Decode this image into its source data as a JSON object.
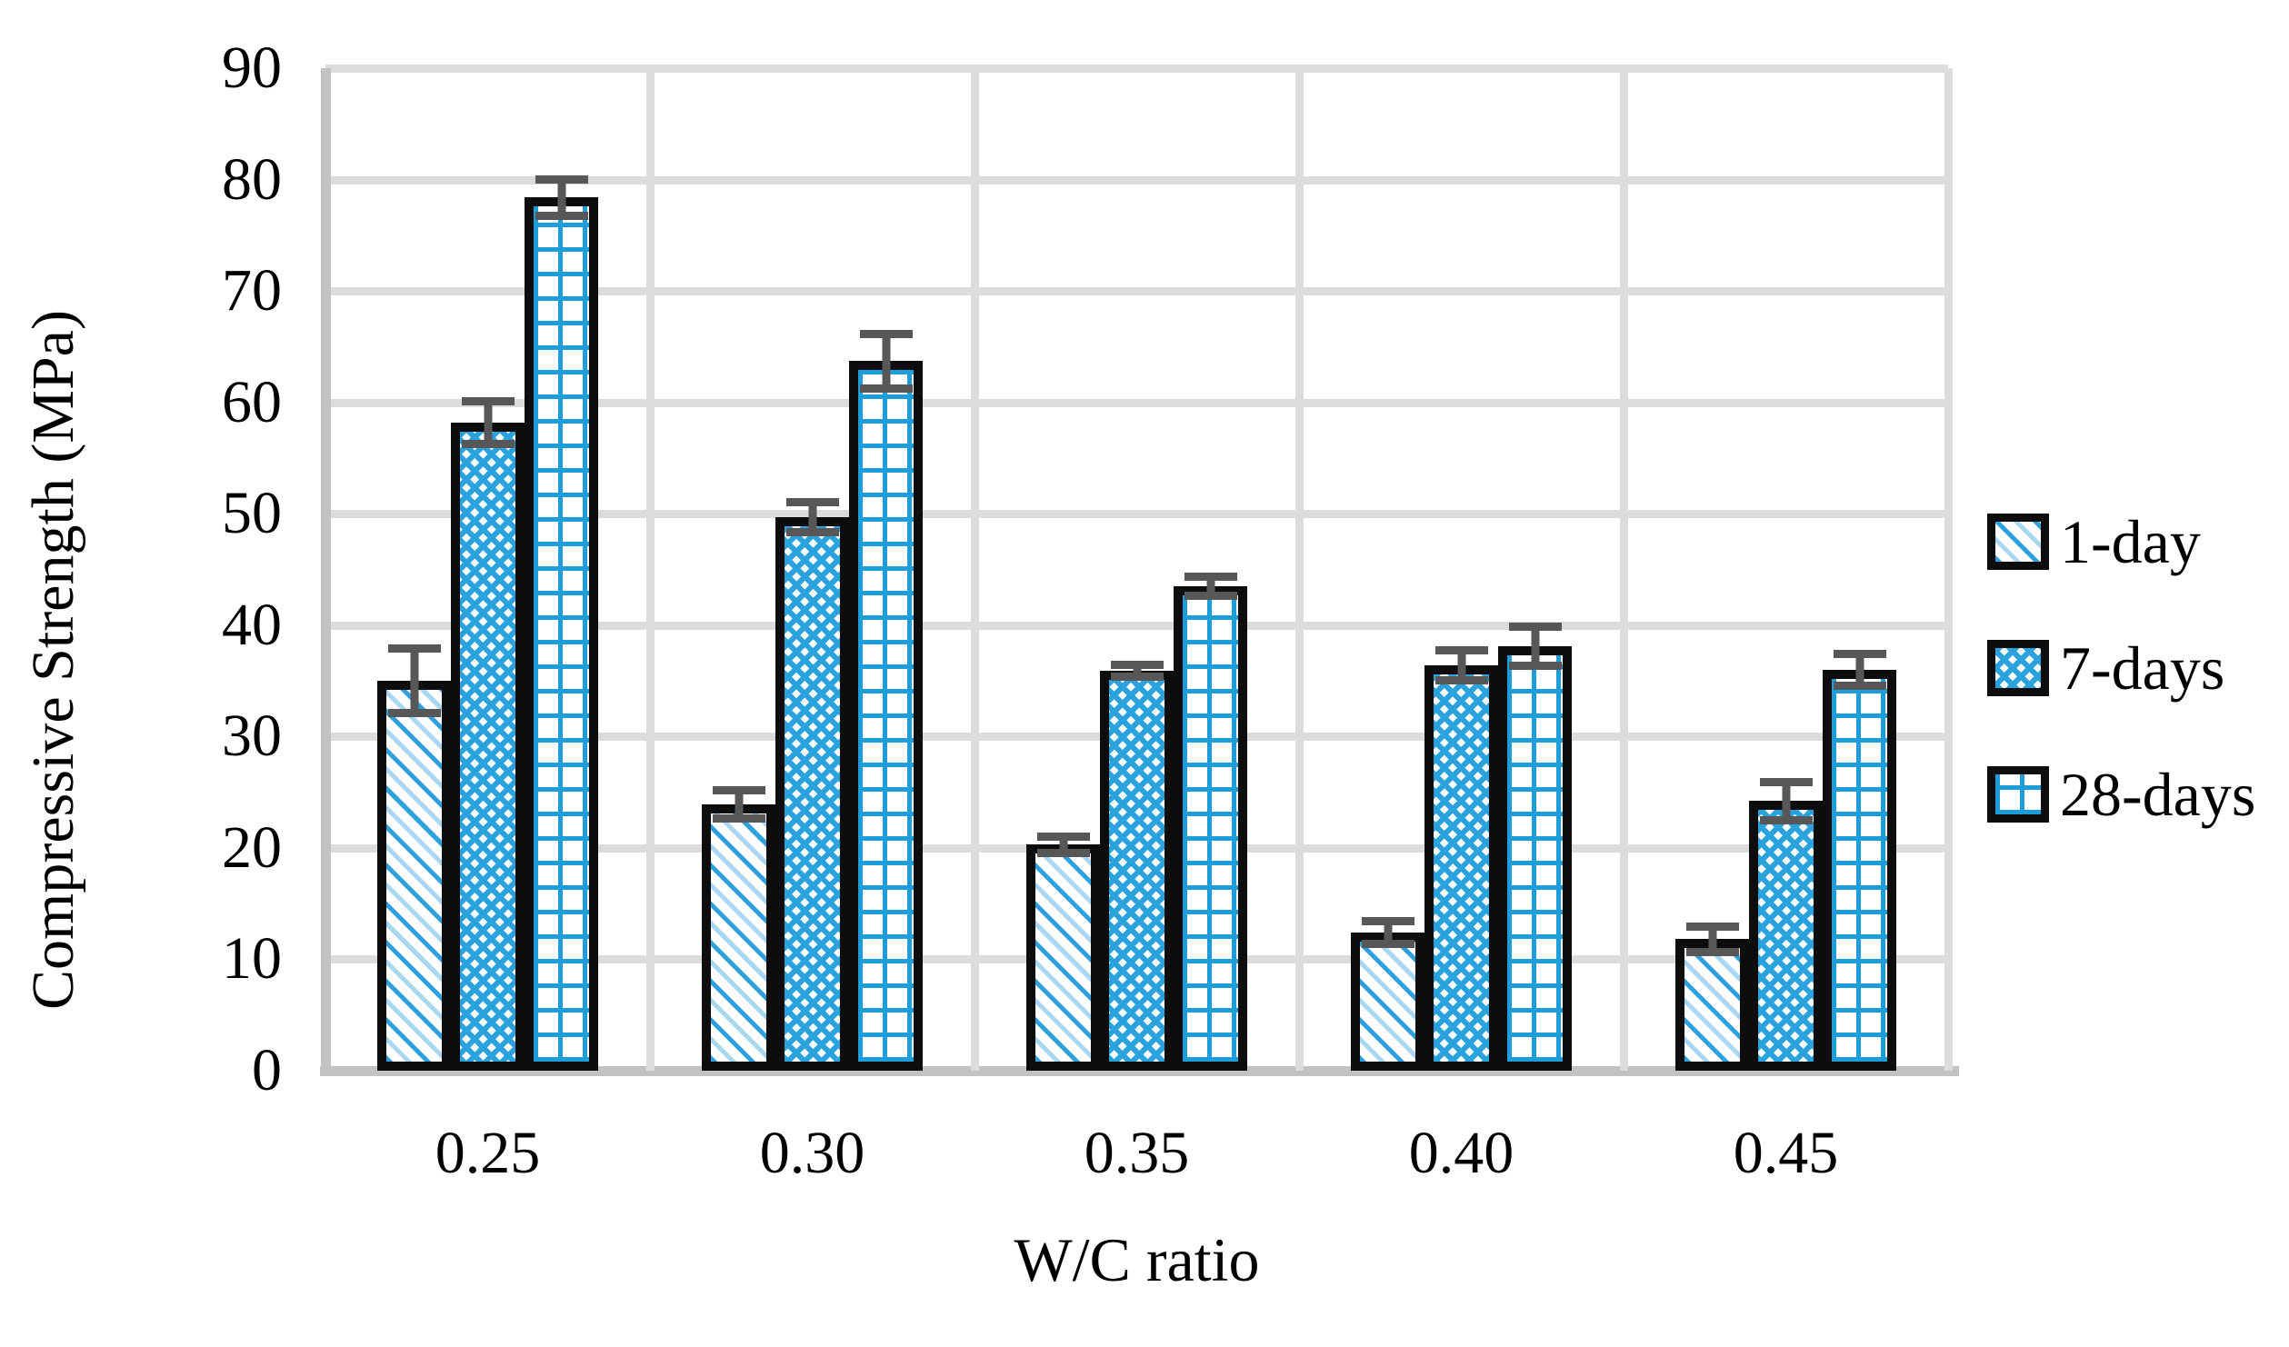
{
  "chart_data": {
    "type": "bar",
    "title": "",
    "xlabel": "W/C ratio",
    "ylabel": "Compressive Strength (MPa)",
    "categories": [
      "0.25",
      "0.30",
      "0.35",
      "0.40",
      "0.45"
    ],
    "series": [
      {
        "name": "1-day",
        "pattern": "diag",
        "values": [
          35.0,
          23.9,
          20.3,
          12.4,
          11.8
        ],
        "errors": [
          3.3,
          1.6,
          1.1,
          1.4,
          1.5
        ]
      },
      {
        "name": "7-days",
        "pattern": "cross",
        "values": [
          58.2,
          49.7,
          35.9,
          36.4,
          24.2
        ],
        "errors": [
          2.3,
          1.7,
          0.9,
          1.7,
          2.1
        ]
      },
      {
        "name": "28-days",
        "pattern": "grid",
        "values": [
          78.4,
          63.7,
          43.5,
          38.1,
          36.0
        ],
        "errors": [
          2.0,
          2.8,
          1.2,
          2.1,
          1.8
        ]
      }
    ],
    "ylim": [
      0,
      90
    ],
    "ytick_step": 10,
    "ytick_labels": [
      "0",
      "10",
      "20",
      "30",
      "40",
      "50",
      "60",
      "70",
      "80",
      "90"
    ],
    "grid": "horizontal gridlines every 10 MPa and vertical gridlines at category boundaries",
    "legend_position": "right",
    "colors": {
      "pattern_blue": "#29a2de",
      "pattern_blue_light": "#a9d7f1",
      "grid_pattern_blue": "#1f9cda",
      "bar_border": "#0d0d0d",
      "error_bar": "#575757",
      "gridline": "#dcdcdc",
      "axis_line": "#c2c2c2",
      "text": "#000000"
    }
  }
}
